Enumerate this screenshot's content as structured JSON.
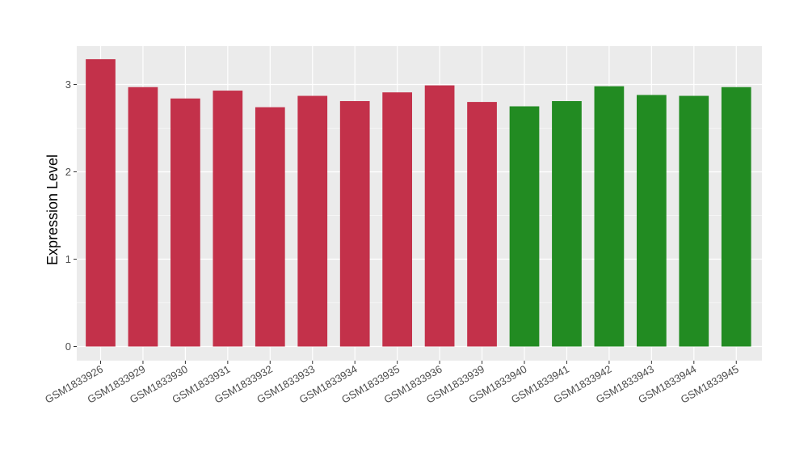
{
  "chart_data": {
    "type": "bar",
    "title": "",
    "xlabel": "",
    "ylabel": "Expression Level",
    "ylim": [
      0,
      3.43
    ],
    "yticks": [
      0,
      1,
      2,
      3
    ],
    "grid": true,
    "categories": [
      "GSM1833926",
      "GSM1833929",
      "GSM1833930",
      "GSM1833931",
      "GSM1833932",
      "GSM1833933",
      "GSM1833934",
      "GSM1833935",
      "GSM1833936",
      "GSM1833939",
      "GSM1833940",
      "GSM1833941",
      "GSM1833942",
      "GSM1833943",
      "GSM1833944",
      "GSM1833945"
    ],
    "values": [
      3.29,
      2.97,
      2.84,
      2.93,
      2.74,
      2.87,
      2.81,
      2.91,
      2.99,
      2.8,
      2.75,
      2.81,
      2.98,
      2.88,
      2.87,
      2.97
    ],
    "bar_colors": [
      "#c3314a",
      "#c3314a",
      "#c3314a",
      "#c3314a",
      "#c3314a",
      "#c3314a",
      "#c3314a",
      "#c3314a",
      "#c3314a",
      "#c3314a",
      "#228b22",
      "#228b22",
      "#228b22",
      "#228b22",
      "#228b22",
      "#228b22"
    ],
    "panel_background": "#ebebeb",
    "grid_color": "#ffffff"
  }
}
